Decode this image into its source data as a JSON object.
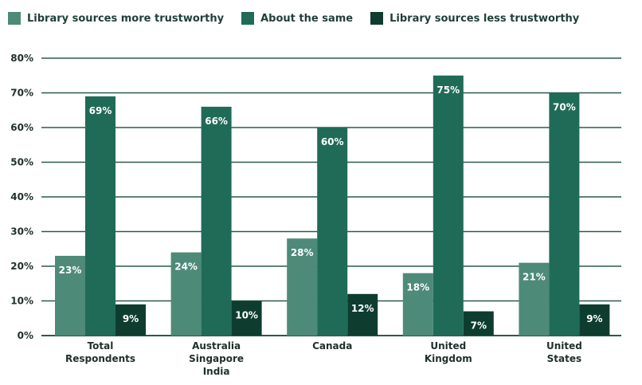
{
  "chart_data": {
    "type": "bar",
    "categories": [
      [
        "Total",
        "Respondents"
      ],
      [
        "Australia",
        "Singapore",
        "India"
      ],
      [
        "Canada"
      ],
      [
        "United",
        "Kingdom"
      ],
      [
        "United",
        "States"
      ]
    ],
    "series": [
      {
        "name": "Library sources more trustworthy",
        "color": "#4e8a78",
        "values": [
          23,
          24,
          28,
          18,
          21
        ]
      },
      {
        "name": "About the same",
        "color": "#1f6b58",
        "values": [
          69,
          66,
          60,
          75,
          70
        ]
      },
      {
        "name": "Library sources less trustworthy",
        "color": "#0e3d30",
        "values": [
          9,
          10,
          12,
          7,
          9
        ]
      }
    ],
    "value_suffix": "%",
    "ylim": [
      0,
      80
    ],
    "yticks": [
      "0%",
      "10%",
      "20%",
      "30%",
      "40%",
      "50%",
      "60%",
      "70%",
      "80%"
    ],
    "grid": true,
    "legend_position": "top"
  }
}
